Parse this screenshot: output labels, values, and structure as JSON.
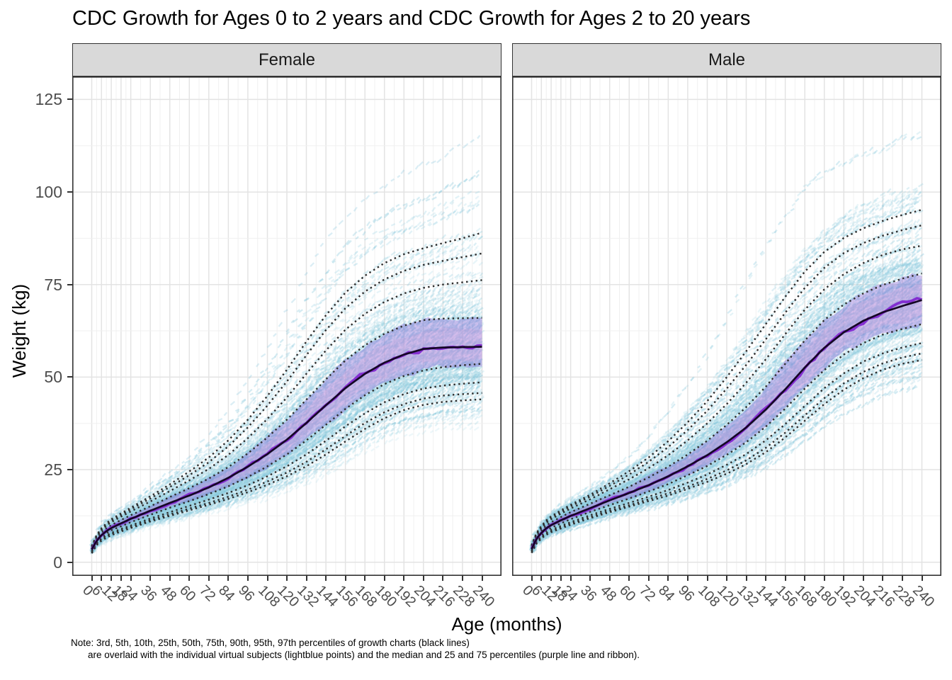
{
  "title": "CDC Growth for Ages 0 to 2 years and CDC Growth for Ages 2 to 20 years",
  "facets": [
    {
      "label": "Female"
    },
    {
      "label": "Male"
    }
  ],
  "axes": {
    "x": {
      "label": "Age (months)",
      "ticks": [
        0,
        6,
        12,
        18,
        24,
        36,
        48,
        60,
        72,
        84,
        96,
        108,
        120,
        132,
        144,
        156,
        168,
        180,
        192,
        204,
        216,
        228,
        240
      ]
    },
    "y": {
      "label": "Weight (kg)",
      "ticks": [
        0,
        25,
        50,
        75,
        100,
        125
      ]
    }
  },
  "caption": {
    "line1": "Note: 3rd, 5th, 10th, 25th, 50th, 75th, 90th, 95th, 97th percentiles of growth charts (black lines)",
    "line2": "are overlaid with the individual virtual subjects (lightblue points) and the median and 25 and 75 percentiles (purple line and ribbon)."
  },
  "colors": {
    "strip_bg": "#d9d9d9",
    "strip_border": "#333333",
    "panel_border": "#333333",
    "grid_major": "#e3e3e3",
    "grid_minor": "#f0f0f0",
    "percentile_dotted": "#2e2e2e",
    "median_solid": "#150726",
    "subject_point_colors": [
      "#8ccadd",
      "#a5d8e6",
      "#79c2d9"
    ],
    "ribbon": "rgba(137,103,214,0.40)",
    "ribbon_inner": "rgba(224,170,224,0.25)",
    "subject_median": "#7f24cf",
    "tick_label": "#4d4d4d",
    "text": "#000000"
  },
  "chart_data": {
    "type": "line",
    "title": "CDC Growth for Ages 0 to 2 years and CDC Growth for Ages 2 to 20 years",
    "xlabel": "Age (months)",
    "ylabel": "Weight (kg)",
    "x_ticks": [
      0,
      6,
      12,
      18,
      24,
      36,
      48,
      60,
      72,
      84,
      96,
      108,
      120,
      132,
      144,
      156,
      168,
      180,
      192,
      204,
      216,
      228,
      240
    ],
    "y_ticks": [
      0,
      25,
      50,
      75,
      100,
      125
    ],
    "xlim": [
      -12,
      252
    ],
    "ylim": [
      -3.7,
      131.2
    ],
    "grid": true,
    "legend_position": "none",
    "percentiles": [
      "3rd",
      "5th",
      "10th",
      "25th",
      "50th",
      "75th",
      "90th",
      "95th",
      "97th"
    ],
    "ages_months": [
      0,
      3,
      6,
      9,
      12,
      18,
      24,
      36,
      48,
      60,
      72,
      84,
      96,
      108,
      120,
      132,
      144,
      156,
      168,
      180,
      192,
      204,
      216,
      228,
      240
    ],
    "series": [
      {
        "name": "Female",
        "values": {
          "3rd": [
            2.4,
            4.6,
            5.8,
            6.6,
            7.3,
            8.3,
            9.2,
            11.0,
            12.5,
            14.0,
            15.5,
            17.1,
            18.9,
            20.9,
            23.2,
            25.9,
            29.1,
            32.6,
            36.0,
            38.9,
            41.1,
            42.5,
            43.3,
            43.7,
            44.0
          ],
          "5th": [
            2.5,
            4.8,
            6.0,
            6.9,
            7.6,
            8.6,
            9.5,
            11.3,
            12.9,
            14.5,
            16.0,
            17.7,
            19.6,
            21.8,
            24.2,
            27.1,
            30.5,
            34.1,
            37.6,
            40.5,
            42.7,
            44.2,
            45.0,
            45.4,
            45.7
          ],
          "10th": [
            2.8,
            5.0,
            6.3,
            7.2,
            7.9,
            9.0,
            9.9,
            11.8,
            13.5,
            15.2,
            16.9,
            18.7,
            20.8,
            23.2,
            25.9,
            29.1,
            32.8,
            36.7,
            40.2,
            43.2,
            45.4,
            46.9,
            47.7,
            48.2,
            48.6
          ],
          "25th": [
            3.0,
            5.4,
            6.8,
            7.8,
            8.6,
            9.7,
            10.8,
            12.8,
            14.7,
            16.5,
            18.4,
            20.5,
            23.0,
            25.9,
            29.1,
            32.9,
            37.1,
            41.4,
            45.1,
            48.1,
            50.3,
            51.8,
            52.7,
            53.2,
            53.6
          ],
          "50th": [
            3.4,
            5.8,
            7.3,
            8.4,
            9.2,
            10.5,
            11.7,
            13.9,
            16.0,
            18.0,
            20.2,
            22.8,
            25.8,
            29.2,
            33.1,
            37.6,
            42.4,
            47.0,
            50.9,
            53.9,
            56.1,
            57.6,
            58.0,
            58.1,
            58.2
          ],
          "75th": [
            3.7,
            6.3,
            7.9,
            9.1,
            10.0,
            11.4,
            12.7,
            15.1,
            17.6,
            20.0,
            22.6,
            25.7,
            29.4,
            33.7,
            38.5,
            43.9,
            49.4,
            54.5,
            58.6,
            61.7,
            63.9,
            65.4,
            65.8,
            65.9,
            66.0
          ],
          "90th": [
            4.0,
            6.8,
            8.5,
            9.8,
            10.8,
            12.3,
            13.7,
            16.4,
            19.2,
            22.1,
            25.2,
            29.0,
            33.5,
            38.7,
            44.5,
            50.9,
            57.2,
            62.8,
            67.1,
            70.3,
            72.6,
            74.1,
            75.0,
            75.6,
            76.2
          ],
          "95th": [
            4.2,
            7.1,
            8.9,
            10.2,
            11.2,
            12.8,
            14.3,
            17.2,
            20.3,
            23.5,
            27.0,
            31.3,
            36.4,
            42.3,
            48.8,
            55.9,
            62.7,
            68.6,
            73.1,
            76.4,
            78.7,
            80.3,
            81.4,
            82.4,
            83.4
          ],
          "97th": [
            4.4,
            7.3,
            9.2,
            10.5,
            11.6,
            13.2,
            14.7,
            17.8,
            21.0,
            24.5,
            28.3,
            32.9,
            38.5,
            44.9,
            52.0,
            59.6,
            66.7,
            72.8,
            77.4,
            80.8,
            83.2,
            84.8,
            86.2,
            87.5,
            89.0
          ]
        }
      },
      {
        "name": "Male",
        "values": {
          "3rd": [
            2.5,
            5.0,
            6.4,
            7.4,
            8.1,
            9.1,
            10.1,
            11.9,
            13.5,
            15.0,
            16.5,
            18.0,
            19.8,
            21.7,
            23.9,
            26.5,
            29.7,
            33.7,
            38.2,
            42.7,
            46.6,
            49.7,
            52.0,
            53.6,
            54.6
          ],
          "5th": [
            2.6,
            5.2,
            6.6,
            7.6,
            8.3,
            9.4,
            10.4,
            12.2,
            13.9,
            15.4,
            17.0,
            18.6,
            20.4,
            22.5,
            24.8,
            27.5,
            30.9,
            35.0,
            39.7,
            44.3,
            48.3,
            51.4,
            53.7,
            55.3,
            56.4
          ],
          "10th": [
            2.9,
            5.5,
            6.9,
            7.9,
            8.7,
            9.8,
            10.8,
            12.7,
            14.4,
            16.0,
            17.7,
            19.5,
            21.5,
            23.7,
            26.3,
            29.2,
            32.9,
            37.3,
            42.2,
            47.0,
            51.0,
            54.2,
            56.4,
            58.0,
            59.2
          ],
          "25th": [
            3.1,
            5.9,
            7.4,
            8.5,
            9.3,
            10.5,
            11.6,
            13.6,
            15.4,
            17.2,
            19.1,
            21.1,
            23.5,
            26.0,
            29.0,
            32.4,
            36.6,
            41.5,
            46.9,
            51.9,
            56.1,
            59.2,
            61.5,
            63.0,
            64.3
          ],
          "50th": [
            3.5,
            6.4,
            7.9,
            9.2,
            10.0,
            11.3,
            12.5,
            14.6,
            16.7,
            18.7,
            20.8,
            23.2,
            25.9,
            28.9,
            32.4,
            36.4,
            41.2,
            46.7,
            52.6,
            57.9,
            62.1,
            65.2,
            67.5,
            69.2,
            70.8
          ],
          "75th": [
            3.9,
            6.9,
            8.5,
            9.9,
            10.8,
            12.2,
            13.5,
            15.8,
            18.1,
            20.4,
            22.9,
            25.8,
            29.1,
            32.8,
            37.1,
            41.9,
            47.4,
            53.6,
            59.9,
            65.4,
            69.6,
            72.6,
            74.9,
            76.6,
            78.0
          ],
          "90th": [
            4.2,
            7.4,
            9.2,
            10.6,
            11.6,
            13.1,
            14.5,
            17.0,
            19.7,
            22.4,
            25.4,
            28.9,
            32.9,
            37.5,
            42.7,
            48.5,
            54.8,
            61.6,
            68.2,
            73.7,
            77.8,
            80.8,
            83.0,
            84.5,
            85.5
          ],
          "95th": [
            4.4,
            7.7,
            9.5,
            11.0,
            12.1,
            13.6,
            15.1,
            17.7,
            20.6,
            23.7,
            27.1,
            31.1,
            35.7,
            40.9,
            46.9,
            53.3,
            60.2,
            67.4,
            74.1,
            79.5,
            83.5,
            86.2,
            88.2,
            89.7,
            91.0
          ],
          "97th": [
            4.6,
            7.9,
            9.8,
            11.3,
            12.4,
            14.0,
            15.5,
            18.2,
            21.3,
            24.6,
            28.3,
            32.7,
            37.8,
            43.5,
            50.0,
            57.0,
            64.3,
            71.7,
            78.5,
            83.8,
            87.6,
            90.2,
            92.2,
            93.8,
            95.2
          ]
        }
      }
    ]
  }
}
